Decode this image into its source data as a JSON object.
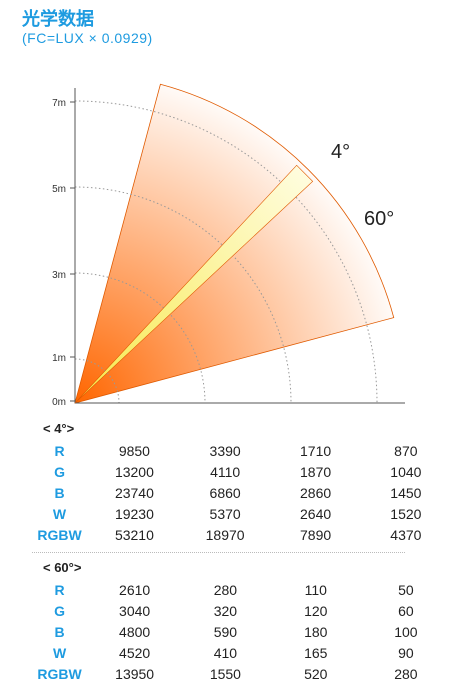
{
  "header": {
    "title": "光学数据",
    "subtitle": "(FC=LUX × 0.0929)"
  },
  "diagram": {
    "distance_labels": [
      "7m",
      "5m",
      "3m",
      "1m",
      "0m"
    ],
    "narrow_beam_label": "4°",
    "wide_beam_label": "60°",
    "colors": {
      "cone_origin": "#ff6600",
      "cone_edge": "#ffffff",
      "narrow_beam_origin": "#f7e84a",
      "narrow_beam_edge": "#fffde0",
      "outline": "#e05a00",
      "accent": "#1e9be0"
    }
  },
  "tables": [
    {
      "label": "< 4°>",
      "rows": [
        {
          "name": "R",
          "values": [
            "9850",
            "3390",
            "1710",
            "870"
          ]
        },
        {
          "name": "G",
          "values": [
            "13200",
            "4110",
            "1870",
            "1040"
          ]
        },
        {
          "name": "B",
          "values": [
            "23740",
            "6860",
            "2860",
            "1450"
          ]
        },
        {
          "name": "W",
          "values": [
            "19230",
            "5370",
            "2640",
            "1520"
          ]
        },
        {
          "name": "RGBW",
          "values": [
            "53210",
            "18970",
            "7890",
            "4370"
          ]
        }
      ]
    },
    {
      "label": "< 60°>",
      "rows": [
        {
          "name": "R",
          "values": [
            "2610",
            "280",
            "110",
            "50"
          ]
        },
        {
          "name": "G",
          "values": [
            "3040",
            "320",
            "120",
            "60"
          ]
        },
        {
          "name": "B",
          "values": [
            "4800",
            "590",
            "180",
            "100"
          ]
        },
        {
          "name": "W",
          "values": [
            "4520",
            "410",
            "165",
            "90"
          ]
        },
        {
          "name": "RGBW",
          "values": [
            "13950",
            "1550",
            "520",
            "280"
          ]
        }
      ]
    }
  ]
}
